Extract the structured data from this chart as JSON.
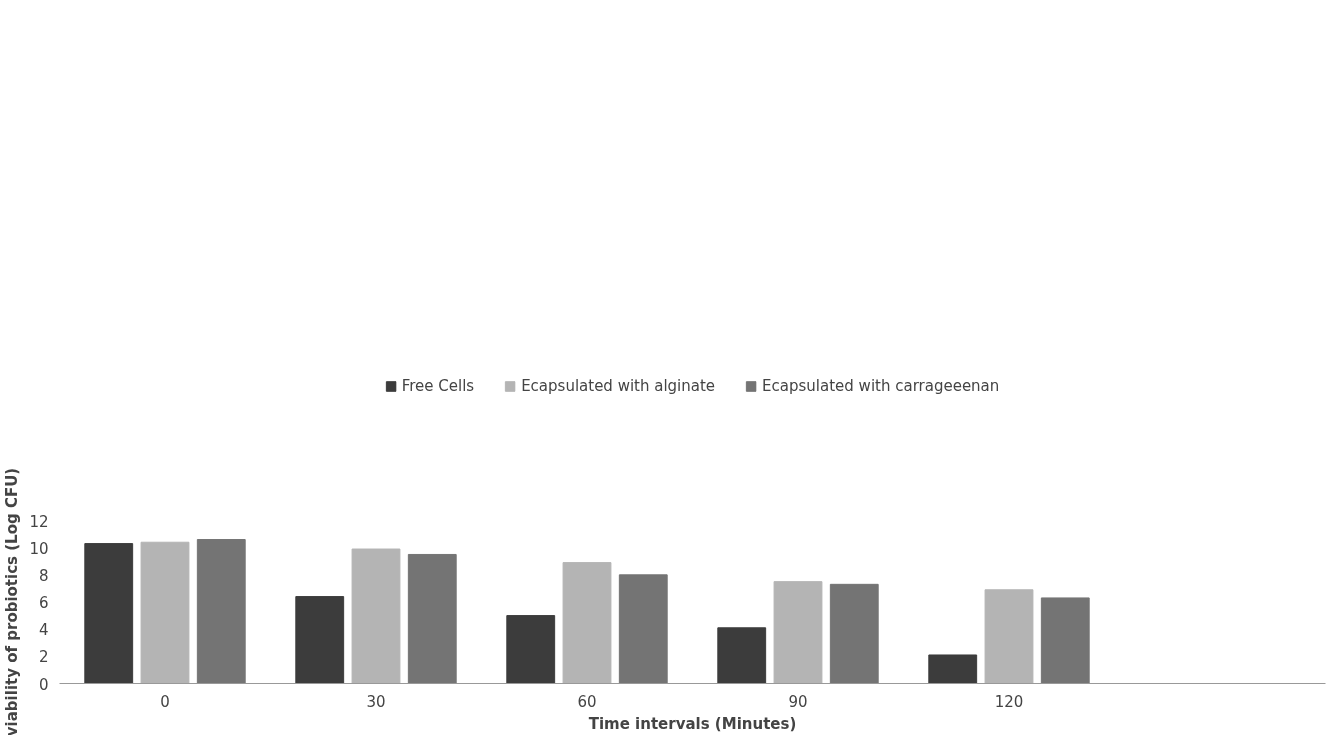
{
  "chart_data": {
    "type": "bar",
    "xlabel": "Time intervals (Minutes)",
    "ylabel": "viability of probiotics (Log CFU)",
    "categories": [
      "0",
      "30",
      "60",
      "90",
      "120",
      null
    ],
    "series": [
      {
        "name": "Free Cells",
        "color": "#3c3c3c",
        "values": [
          10.3,
          6.4,
          5.0,
          4.1,
          2.1,
          null
        ]
      },
      {
        "name": "Ecapsulated with alginate",
        "color": "#b4b4b4",
        "values": [
          10.4,
          9.9,
          8.9,
          7.5,
          6.9,
          null
        ]
      },
      {
        "name": "Ecapsulated with carrageeenan",
        "color": "#747474",
        "values": [
          10.6,
          9.5,
          8.0,
          7.3,
          6.3,
          null
        ]
      }
    ],
    "ylim": [
      0,
      12
    ],
    "yticks": [
      0,
      2,
      4,
      6,
      8,
      10,
      12
    ],
    "grid": false,
    "legend": "top"
  }
}
